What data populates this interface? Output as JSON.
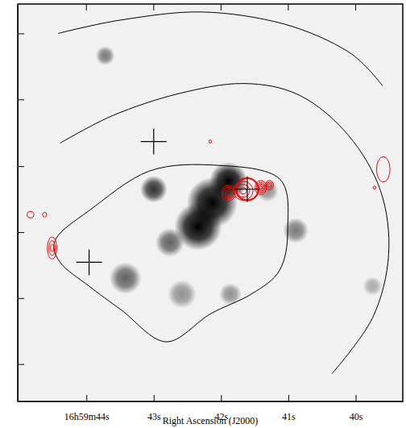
{
  "chart_data": {
    "type": "image",
    "x_label": "Right Ascension (J2000)",
    "xlim": [
      45.02,
      39.3
    ],
    "ylim": [
      0,
      500
    ],
    "xticks": [
      {
        "value": 44,
        "label": "16h59m44s"
      },
      {
        "value": 43,
        "label": "43s"
      },
      {
        "value": 42,
        "label": "42s"
      },
      {
        "value": 41,
        "label": "41s"
      },
      {
        "value": 40,
        "label": "40s"
      }
    ],
    "yticks": [
      47,
      130,
      213,
      296,
      380,
      463
    ],
    "tick_labels": "x",
    "sources": [
      {
        "x": 42.34,
        "y": 220,
        "size": 30,
        "intensity": 1
      },
      {
        "x": 42.13,
        "y": 250,
        "size": 32,
        "intensity": 1
      },
      {
        "x": 41.89,
        "y": 277,
        "size": 24,
        "intensity": 1
      },
      {
        "x": 43.0,
        "y": 267,
        "size": 17,
        "intensity": 0.8
      },
      {
        "x": 42.76,
        "y": 200,
        "size": 18,
        "intensity": 0.6
      },
      {
        "x": 43.42,
        "y": 155,
        "size": 20,
        "intensity": 0.6
      },
      {
        "x": 42.58,
        "y": 135,
        "size": 18,
        "intensity": 0.4
      },
      {
        "x": 41.86,
        "y": 135,
        "size": 14,
        "intensity": 0.4
      },
      {
        "x": 40.89,
        "y": 215,
        "size": 16,
        "intensity": 0.5
      },
      {
        "x": 43.72,
        "y": 435,
        "size": 12,
        "intensity": 0.5
      },
      {
        "x": 41.31,
        "y": 265,
        "size": 14,
        "intensity": 0.4
      },
      {
        "x": 39.75,
        "y": 145,
        "size": 12,
        "intensity": 0.3
      }
    ],
    "contours": [
      {
        "type": "polygon",
        "color": "#000000",
        "x": [
          44.45,
          43.96,
          43.06,
          42.04,
          41.13,
          41.01,
          41.13,
          41.55,
          42.16,
          42.82,
          43.48,
          43.96,
          44.39
        ],
        "y": [
          205,
          240,
          290,
          297,
          280,
          215,
          165,
          135,
          110,
          75,
          115,
          145,
          175
        ]
      },
      {
        "type": "line",
        "color": "#000000",
        "x": [
          44.42,
          43.48,
          42.28,
          41.07,
          40.11,
          39.6
        ],
        "y": [
          463,
          480,
          490,
          475,
          440,
          397
        ]
      },
      {
        "type": "line",
        "color": "#000000",
        "x": [
          44.39,
          43.6,
          42.64,
          41.67,
          40.83,
          40.11,
          39.63,
          39.51,
          39.75,
          40.35
        ],
        "y": [
          325,
          360,
          387,
          400,
          385,
          335,
          265,
          185,
          105,
          35
        ]
      }
    ],
    "red_contours": {
      "color": "#ff0000",
      "sources": [
        {
          "x": 41.67,
          "y": 265,
          "size_x": 0.145,
          "size_y": 12,
          "levels": 3
        },
        {
          "x": 41.89,
          "y": 262,
          "size_x": 0.1,
          "size_y": 10,
          "levels": 4
        },
        {
          "x": 41.41,
          "y": 269,
          "size_x": 0.085,
          "size_y": 9,
          "levels": 4
        },
        {
          "x": 41.28,
          "y": 272,
          "size_x": 0.06,
          "size_y": 6,
          "levels": 3
        },
        {
          "x": 44.51,
          "y": 193,
          "size_x": 0.07,
          "size_y": 14,
          "levels": 3
        },
        {
          "x": 39.59,
          "y": 292,
          "size_x": 0.1,
          "size_y": 16,
          "levels": 1
        },
        {
          "x": 44.83,
          "y": 235,
          "size_x": 0.05,
          "size_y": 4,
          "levels": 1
        },
        {
          "x": 44.62,
          "y": 235,
          "size_x": 0.03,
          "size_y": 3,
          "levels": 1
        },
        {
          "x": 42.16,
          "y": 327,
          "size_x": 0.02,
          "size_y": 2,
          "levels": 1
        },
        {
          "x": 39.72,
          "y": 269,
          "size_x": 0.02,
          "size_y": 2,
          "levels": 1
        }
      ]
    },
    "markers": {
      "marker": "cross",
      "color": "#000000",
      "x": [
        43.0,
        43.96,
        41.61
      ],
      "y": [
        327,
        175,
        267
      ]
    },
    "circle": {
      "color": "#ff0000",
      "x": 41.61,
      "y": 267,
      "size": 14
    }
  }
}
